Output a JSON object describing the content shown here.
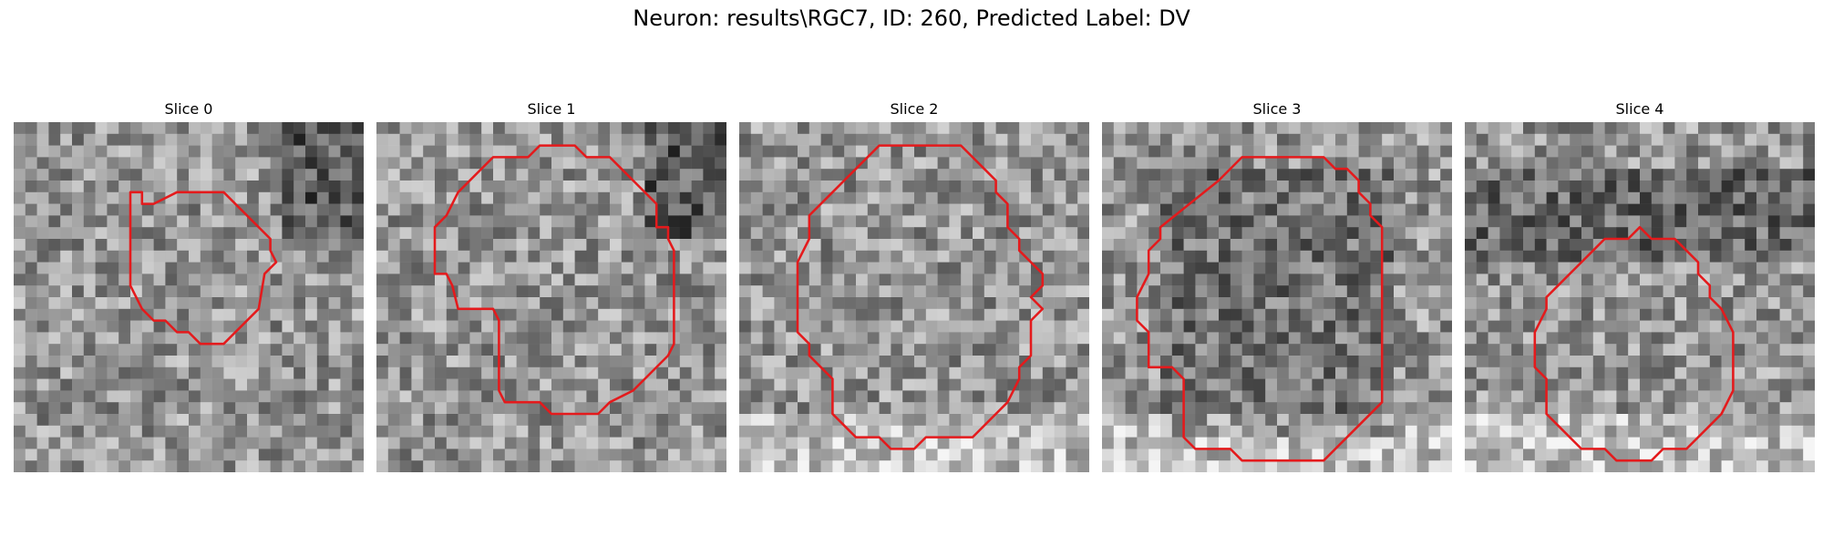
{
  "figure": {
    "title": "Neuron: results\\RGC7, ID: 260, Predicted Label: DV",
    "outline_color": "#e41a1c",
    "colormap": "gray",
    "grid_size": 30
  },
  "slices": [
    {
      "label": "Slice 0"
    },
    {
      "label": "Slice 1"
    },
    {
      "label": "Slice 2"
    },
    {
      "label": "Slice 3"
    },
    {
      "label": "Slice 4"
    }
  ]
}
